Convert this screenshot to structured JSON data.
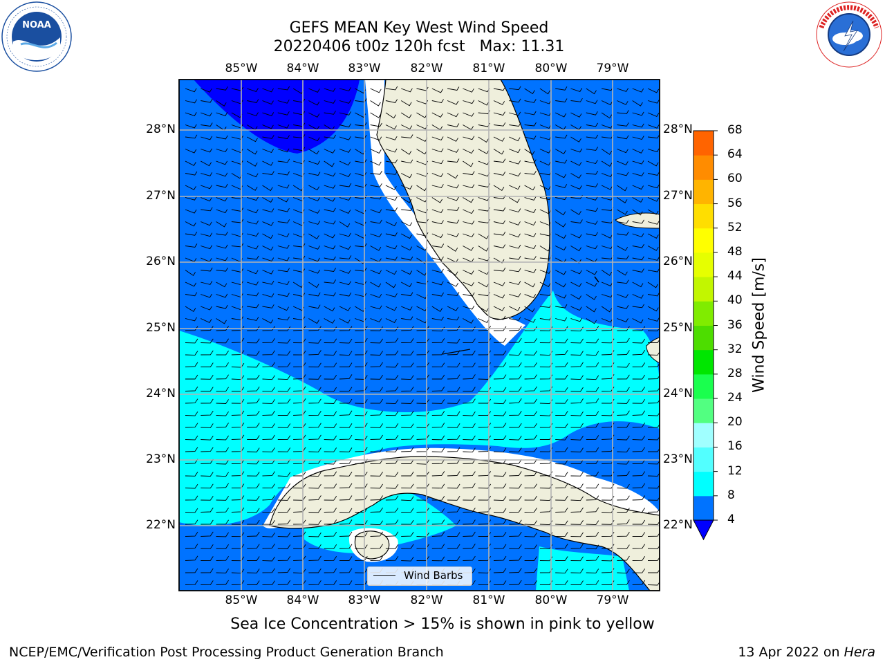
{
  "header": {
    "title_line1": "GEFS MEAN Key West Wind Speed",
    "title_line2": "20220406 t00z 120h fcst   Max: 11.31"
  },
  "logos": {
    "left": "noaa-logo",
    "right": "nws-logo"
  },
  "map": {
    "lon_labels": [
      "85°W",
      "84°W",
      "83°W",
      "82°W",
      "81°W",
      "80°W",
      "79°W"
    ],
    "lat_labels": [
      "28°N",
      "27°N",
      "26°N",
      "25°N",
      "24°N",
      "23°N",
      "22°N"
    ],
    "legend_label": "Wind Barbs",
    "land_color": "#efefdc",
    "field_colors": {
      "4-8": "#0073ff",
      "8-12": "#00ffff",
      "lt4": "#0000ff"
    }
  },
  "colorbar": {
    "label": "Wind Speed [m/s]",
    "ticks": [
      "68",
      "64",
      "60",
      "56",
      "52",
      "48",
      "44",
      "40",
      "36",
      "32",
      "28",
      "24",
      "20",
      "16",
      "12",
      "8",
      "4"
    ],
    "colors": [
      "#0073ff",
      "#00ffff",
      "#52ffff",
      "#a0ffff",
      "#52ff81",
      "#1aff4e",
      "#00e600",
      "#4ddd00",
      "#80ec00",
      "#c2f600",
      "#e6ff00",
      "#ffff00",
      "#ffde00",
      "#ffb400",
      "#ff8c00",
      "#ff6400",
      "#ff3c00",
      "#ff0000"
    ]
  },
  "footer": {
    "note": "Sea Ice Concentration > 15% is shown in pink to yellow",
    "credit_left": "NCEP/EMC/Verification Post Processing Product Generation Branch",
    "credit_date": "13 Apr 2022 on ",
    "credit_host": "Hera"
  }
}
